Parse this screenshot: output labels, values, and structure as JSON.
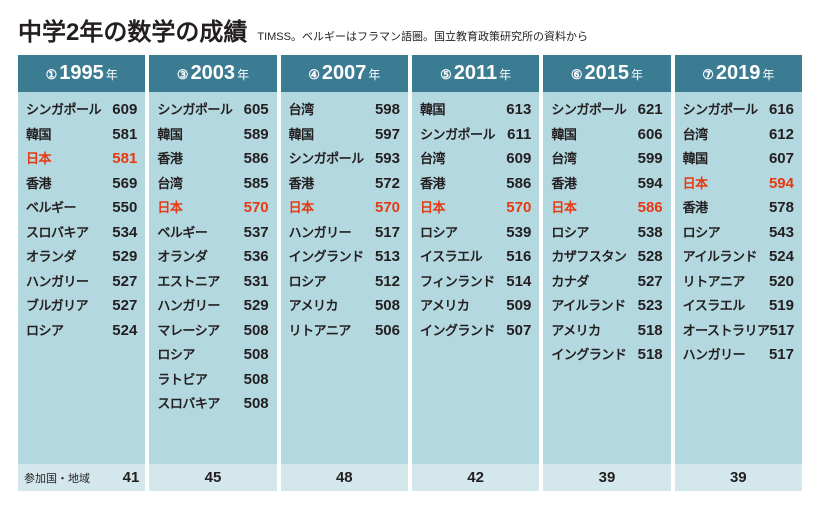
{
  "title": "中学2年の数学の成績",
  "subtitle": "TIMSS。ベルギーはフラマン語圏。国立教育政策研究所の資料から",
  "footer_label": "参加国・地域",
  "colors": {
    "header_bg": "#3c7c93",
    "header_fg": "#ffffff",
    "rows_bg": "#b4d8e0",
    "footer_bg": "#d3e7ec",
    "text": "#231f20",
    "highlight": "#e63912",
    "background": "#ffffff"
  },
  "year_suffix": "年",
  "columns": [
    {
      "circle": "①",
      "year": "1995",
      "participants": 41,
      "show_footer_label": true,
      "rows": [
        {
          "country": "シンガポール",
          "score": 609
        },
        {
          "country": "韓国",
          "score": 581
        },
        {
          "country": "日本",
          "score": 581,
          "highlight": true
        },
        {
          "country": "香港",
          "score": 569
        },
        {
          "country": "ベルギー",
          "score": 550
        },
        {
          "country": "スロバキア",
          "score": 534
        },
        {
          "country": "オランダ",
          "score": 529
        },
        {
          "country": "ハンガリー",
          "score": 527
        },
        {
          "country": "ブルガリア",
          "score": 527
        },
        {
          "country": "ロシア",
          "score": 524
        }
      ]
    },
    {
      "circle": "③",
      "year": "2003",
      "participants": 45,
      "rows": [
        {
          "country": "シンガポール",
          "score": 605
        },
        {
          "country": "韓国",
          "score": 589
        },
        {
          "country": "香港",
          "score": 586
        },
        {
          "country": "台湾",
          "score": 585
        },
        {
          "country": "日本",
          "score": 570,
          "highlight": true
        },
        {
          "country": "ベルギー",
          "score": 537
        },
        {
          "country": "オランダ",
          "score": 536
        },
        {
          "country": "エストニア",
          "score": 531
        },
        {
          "country": "ハンガリー",
          "score": 529
        },
        {
          "country": "マレーシア",
          "score": 508
        },
        {
          "country": "ロシア",
          "score": 508
        },
        {
          "country": "ラトビア",
          "score": 508
        },
        {
          "country": "スロバキア",
          "score": 508
        }
      ]
    },
    {
      "circle": "④",
      "year": "2007",
      "participants": 48,
      "rows": [
        {
          "country": "台湾",
          "score": 598
        },
        {
          "country": "韓国",
          "score": 597
        },
        {
          "country": "シンガポール",
          "score": 593
        },
        {
          "country": "香港",
          "score": 572
        },
        {
          "country": "日本",
          "score": 570,
          "highlight": true
        },
        {
          "country": "ハンガリー",
          "score": 517
        },
        {
          "country": "イングランド",
          "score": 513
        },
        {
          "country": "ロシア",
          "score": 512
        },
        {
          "country": "アメリカ",
          "score": 508
        },
        {
          "country": "リトアニア",
          "score": 506
        }
      ]
    },
    {
      "circle": "⑤",
      "year": "2011",
      "participants": 42,
      "rows": [
        {
          "country": "韓国",
          "score": 613
        },
        {
          "country": "シンガポール",
          "score": 611
        },
        {
          "country": "台湾",
          "score": 609
        },
        {
          "country": "香港",
          "score": 586
        },
        {
          "country": "日本",
          "score": 570,
          "highlight": true
        },
        {
          "country": "ロシア",
          "score": 539
        },
        {
          "country": "イスラエル",
          "score": 516
        },
        {
          "country": "フィンランド",
          "score": 514
        },
        {
          "country": "アメリカ",
          "score": 509
        },
        {
          "country": "イングランド",
          "score": 507
        }
      ]
    },
    {
      "circle": "⑥",
      "year": "2015",
      "participants": 39,
      "rows": [
        {
          "country": "シンガポール",
          "score": 621
        },
        {
          "country": "韓国",
          "score": 606
        },
        {
          "country": "台湾",
          "score": 599
        },
        {
          "country": "香港",
          "score": 594
        },
        {
          "country": "日本",
          "score": 586,
          "highlight": true
        },
        {
          "country": "ロシア",
          "score": 538
        },
        {
          "country": "カザフスタン",
          "score": 528
        },
        {
          "country": "カナダ",
          "score": 527
        },
        {
          "country": "アイルランド",
          "score": 523
        },
        {
          "country": "アメリカ",
          "score": 518
        },
        {
          "country": "イングランド",
          "score": 518
        }
      ]
    },
    {
      "circle": "⑦",
      "year": "2019",
      "participants": 39,
      "rows": [
        {
          "country": "シンガポール",
          "score": 616
        },
        {
          "country": "台湾",
          "score": 612
        },
        {
          "country": "韓国",
          "score": 607
        },
        {
          "country": "日本",
          "score": 594,
          "highlight": true
        },
        {
          "country": "香港",
          "score": 578
        },
        {
          "country": "ロシア",
          "score": 543
        },
        {
          "country": "アイルランド",
          "score": 524
        },
        {
          "country": "リトアニア",
          "score": 520
        },
        {
          "country": "イスラエル",
          "score": 519
        },
        {
          "country": "オーストラリア",
          "score": 517
        },
        {
          "country": "ハンガリー",
          "score": 517
        }
      ]
    }
  ]
}
